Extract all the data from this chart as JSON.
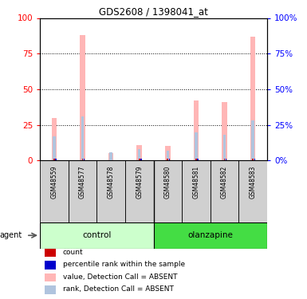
{
  "title": "GDS2608 / 1398041_at",
  "samples": [
    "GSM48559",
    "GSM48577",
    "GSM48578",
    "GSM48579",
    "GSM48580",
    "GSM48581",
    "GSM48582",
    "GSM48583"
  ],
  "value_absent": [
    30,
    88,
    5,
    11,
    10,
    42,
    41,
    87
  ],
  "rank_absent": [
    17,
    31,
    6,
    8,
    7,
    20,
    18,
    28
  ],
  "count_val": [
    1,
    1,
    0,
    1,
    1,
    1,
    1,
    1
  ],
  "percentile_rank": [
    17,
    31,
    0,
    8,
    7,
    20,
    18,
    28
  ],
  "y_ticks": [
    0,
    25,
    50,
    75,
    100
  ],
  "color_value_absent": "#FFB6B6",
  "color_rank_absent": "#B0C4DE",
  "color_count": "#CC0000",
  "color_percentile": "#0000CC",
  "color_control_light": "#CCFFCC",
  "color_control_dark": "#44DD44",
  "color_olanzapine_light": "#44DD44",
  "color_olanzapine_dark": "#22BB22",
  "bg_gray": "#D0D0D0",
  "legend_items": [
    {
      "label": "count",
      "color": "#CC0000"
    },
    {
      "label": "percentile rank within the sample",
      "color": "#0000CC"
    },
    {
      "label": "value, Detection Call = ABSENT",
      "color": "#FFB6B6"
    },
    {
      "label": "rank, Detection Call = ABSENT",
      "color": "#B0C4DE"
    }
  ],
  "n_control": 4,
  "n_olanzapine": 4
}
